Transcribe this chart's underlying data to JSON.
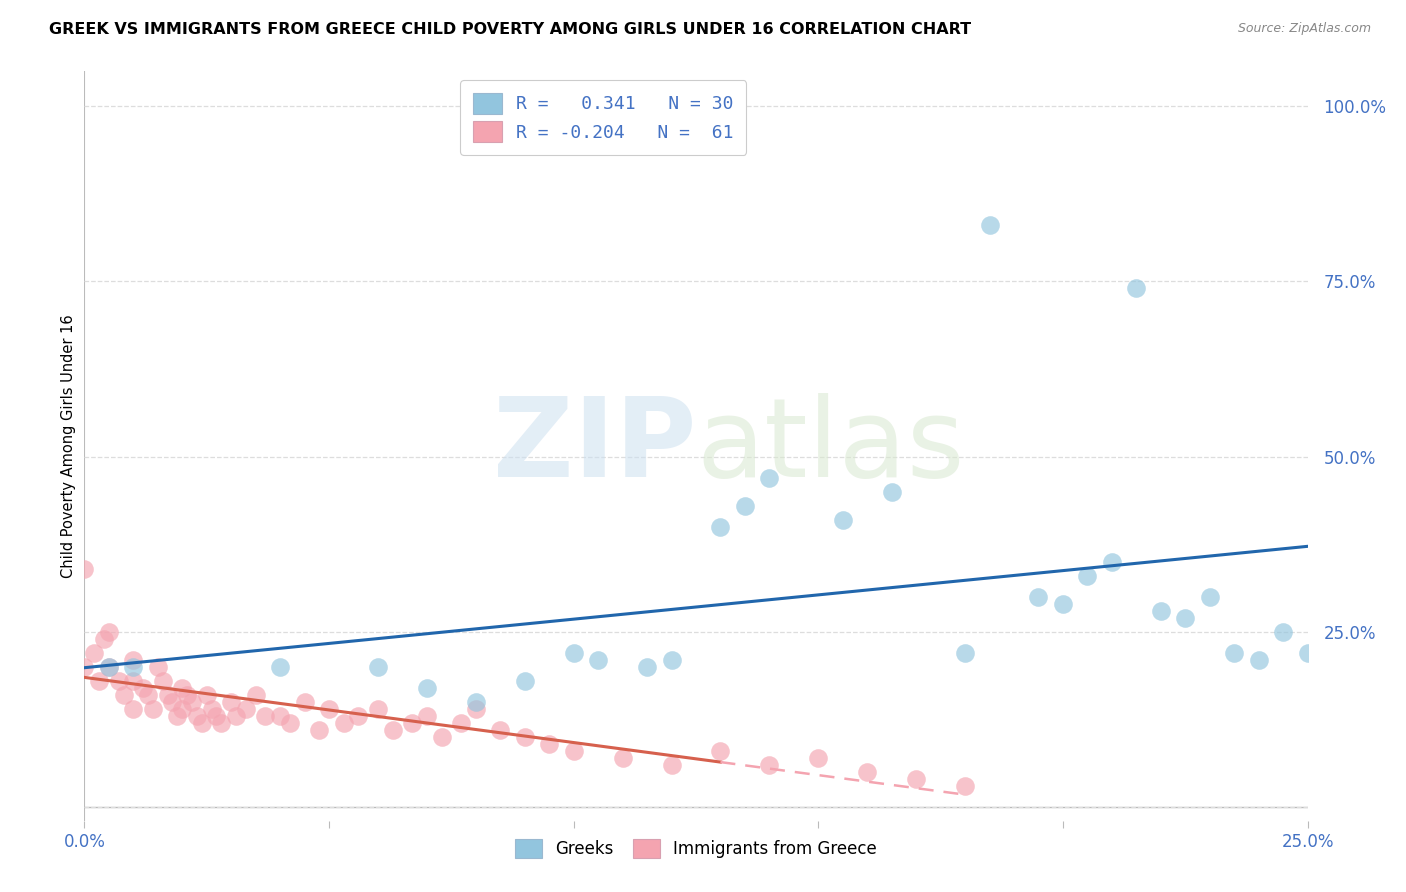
{
  "title": "GREEK VS IMMIGRANTS FROM GREECE CHILD POVERTY AMONG GIRLS UNDER 16 CORRELATION CHART",
  "source": "Source: ZipAtlas.com",
  "ylabel": "Child Poverty Among Girls Under 16",
  "ytick_vals": [
    0.0,
    0.25,
    0.5,
    0.75,
    1.0
  ],
  "xlim": [
    0.0,
    0.25
  ],
  "ylim": [
    -0.02,
    1.05
  ],
  "watermark": "ZIPatlas",
  "legend_R_blue": "0.341",
  "legend_N_blue": "30",
  "legend_R_pink": "-0.204",
  "legend_N_pink": "61",
  "blue_color": "#92c5de",
  "pink_color": "#f4a4b0",
  "trendline_blue_color": "#2166ac",
  "trendline_pink_solid_color": "#d6604d",
  "trendline_pink_dash_color": "#f4a4b0",
  "blue_scatter_x": [
    0.005,
    0.01,
    0.04,
    0.06,
    0.07,
    0.08,
    0.09,
    0.1,
    0.105,
    0.115,
    0.12,
    0.13,
    0.135,
    0.14,
    0.155,
    0.165,
    0.18,
    0.185,
    0.195,
    0.2,
    0.205,
    0.21,
    0.215,
    0.22,
    0.225,
    0.23,
    0.235,
    0.24,
    0.245,
    0.25
  ],
  "blue_scatter_y": [
    0.2,
    0.2,
    0.2,
    0.2,
    0.17,
    0.15,
    0.18,
    0.22,
    0.21,
    0.2,
    0.21,
    0.4,
    0.43,
    0.47,
    0.41,
    0.45,
    0.22,
    0.83,
    0.3,
    0.29,
    0.33,
    0.35,
    0.74,
    0.28,
    0.27,
    0.3,
    0.22,
    0.21,
    0.25,
    0.22
  ],
  "pink_scatter_x": [
    0.0,
    0.0,
    0.002,
    0.003,
    0.004,
    0.005,
    0.005,
    0.007,
    0.008,
    0.01,
    0.01,
    0.01,
    0.012,
    0.013,
    0.014,
    0.015,
    0.016,
    0.017,
    0.018,
    0.019,
    0.02,
    0.02,
    0.021,
    0.022,
    0.023,
    0.024,
    0.025,
    0.026,
    0.027,
    0.028,
    0.03,
    0.031,
    0.033,
    0.035,
    0.037,
    0.04,
    0.042,
    0.045,
    0.048,
    0.05,
    0.053,
    0.056,
    0.06,
    0.063,
    0.067,
    0.07,
    0.073,
    0.077,
    0.08,
    0.085,
    0.09,
    0.095,
    0.1,
    0.11,
    0.12,
    0.13,
    0.14,
    0.15,
    0.16,
    0.17,
    0.18
  ],
  "pink_scatter_y": [
    0.34,
    0.2,
    0.22,
    0.18,
    0.24,
    0.25,
    0.2,
    0.18,
    0.16,
    0.21,
    0.18,
    0.14,
    0.17,
    0.16,
    0.14,
    0.2,
    0.18,
    0.16,
    0.15,
    0.13,
    0.17,
    0.14,
    0.16,
    0.15,
    0.13,
    0.12,
    0.16,
    0.14,
    0.13,
    0.12,
    0.15,
    0.13,
    0.14,
    0.16,
    0.13,
    0.13,
    0.12,
    0.15,
    0.11,
    0.14,
    0.12,
    0.13,
    0.14,
    0.11,
    0.12,
    0.13,
    0.1,
    0.12,
    0.14,
    0.11,
    0.1,
    0.09,
    0.08,
    0.07,
    0.06,
    0.08,
    0.06,
    0.07,
    0.05,
    0.04,
    0.03
  ],
  "axis_color": "#bbbbbb",
  "tick_color": "#4472c4",
  "grid_color": "#dddddd",
  "background_color": "#ffffff",
  "title_fontsize": 11.5,
  "source_fontsize": 9,
  "scatter_size": 180,
  "scatter_alpha": 0.65
}
